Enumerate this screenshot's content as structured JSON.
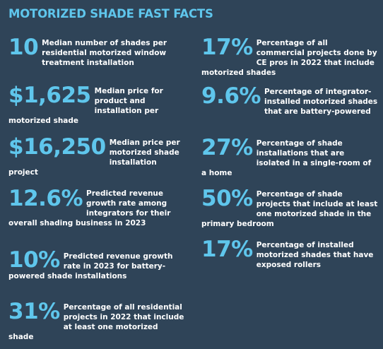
{
  "title": "MOTORIZED SHADE FAST FACTS",
  "colors": {
    "background": "#2f4458",
    "accent": "#5fc6ec",
    "text": "#ffffff"
  },
  "facts_left": [
    {
      "stat": "10",
      "desc": "Median number of shades per residential motorized window treatment installation"
    },
    {
      "stat": "$1,625",
      "desc": "Median price for product and installation per motorized shade"
    },
    {
      "stat": "$16,250",
      "desc": "Median price per motorized shade installation project"
    },
    {
      "stat": "12.6%",
      "desc": "Predicted revenue growth rate among integrators for their overall shading business in 2023"
    },
    {
      "stat": "10%",
      "desc": "Predicted revenue growth rate in 2023 for battery-powered shade installations"
    },
    {
      "stat": "31%",
      "desc": "Percentage of all residential projects in 2022 that include at least one motorized shade"
    }
  ],
  "facts_right": [
    {
      "stat": "17%",
      "desc": "Percentage of all commercial projects done by CE pros in 2022 that include motorized shades"
    },
    {
      "stat": "9.6%",
      "desc": "Percentage of integrator-installed motorized shades that are battery-powered"
    },
    {
      "stat": "27%",
      "desc": "Percentage of shade installations that are isolated in a single-room of a home"
    },
    {
      "stat": "50%",
      "desc": "Percentage of shade projects that include at least one motorized shade in the primary bedroom"
    },
    {
      "stat": "17%",
      "desc": "Percentage of installed motorized shades that have exposed rollers"
    }
  ]
}
